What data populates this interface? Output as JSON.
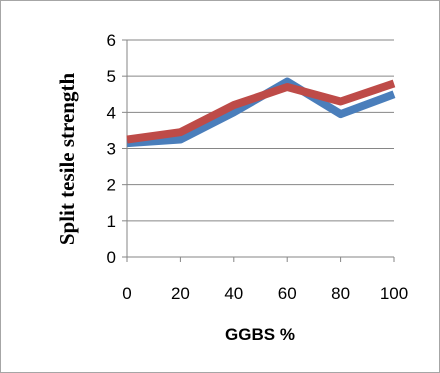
{
  "chart_data": {
    "type": "line",
    "x": [
      0,
      20,
      40,
      60,
      80,
      100
    ],
    "series": [
      {
        "color": "#4A7EBB",
        "values": [
          3.15,
          3.25,
          4.0,
          4.85,
          3.95,
          4.5
        ]
      },
      {
        "color": "#BE4B48",
        "values": [
          3.25,
          3.45,
          4.2,
          4.7,
          4.3,
          4.8
        ]
      }
    ],
    "title": "",
    "xlabel": "GGBS %",
    "ylabel": "Split tesile strength",
    "xlim": [
      0,
      100
    ],
    "ylim": [
      0,
      6
    ],
    "x_ticks": [
      "0",
      "20",
      "40",
      "60",
      "80",
      "100"
    ],
    "y_ticks": [
      "0",
      "1",
      "2",
      "3",
      "4",
      "5",
      "6"
    ],
    "grid": "horizontal",
    "legend": "none"
  }
}
